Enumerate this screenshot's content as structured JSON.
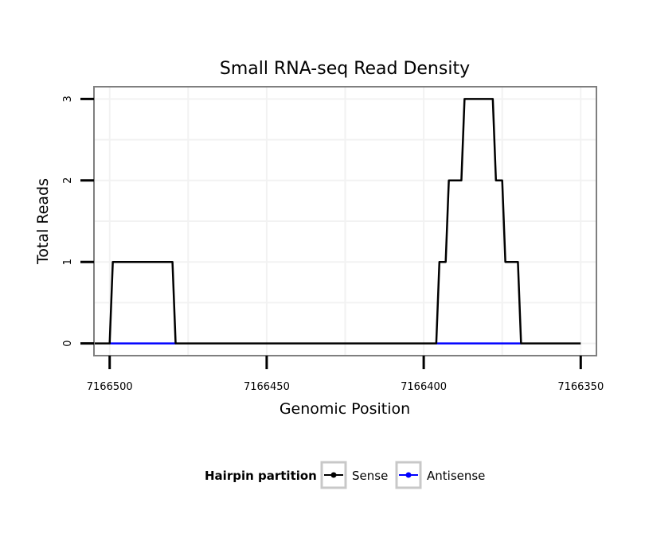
{
  "chart_data": {
    "type": "line",
    "title": "Small RNA-seq Read Density",
    "xlabel": "Genomic Position",
    "ylabel": "Total Reads",
    "xlim": [
      7166505,
      7166345
    ],
    "ylim": [
      -0.15,
      3.15
    ],
    "x_reversed": true,
    "x_ticks": [
      7166500,
      7166450,
      7166400,
      7166350
    ],
    "x_tick_labels": [
      "7166500",
      "7166450",
      "7166400",
      "7166350"
    ],
    "y_ticks": [
      0,
      1,
      2,
      3
    ],
    "y_tick_labels": [
      "0",
      "1",
      "2",
      "3"
    ],
    "grid": true,
    "legend": {
      "title": "Hairpin partition",
      "placement": "bottom",
      "entries": [
        {
          "name": "Sense",
          "color": "#000000"
        },
        {
          "name": "Antisense",
          "color": "#0000ff"
        }
      ]
    },
    "series": [
      {
        "name": "Sense",
        "color": "#000000",
        "x": [
          7166505,
          7166500,
          7166499,
          7166480,
          7166479,
          7166396,
          7166395,
          7166393,
          7166392,
          7166388,
          7166387,
          7166378,
          7166377,
          7166375,
          7166374,
          7166370,
          7166369,
          7166350
        ],
        "y": [
          0,
          0,
          1,
          1,
          0,
          0,
          1,
          1,
          2,
          2,
          3,
          3,
          2,
          2,
          1,
          1,
          0,
          0
        ]
      },
      {
        "name": "Antisense",
        "color": "#0000ff",
        "x": [
          7166500,
          7166479,
          7166396,
          7166369
        ],
        "y": [
          0,
          0,
          0,
          0
        ],
        "segments": [
          [
            0,
            1
          ],
          [
            2,
            3
          ]
        ]
      }
    ]
  }
}
